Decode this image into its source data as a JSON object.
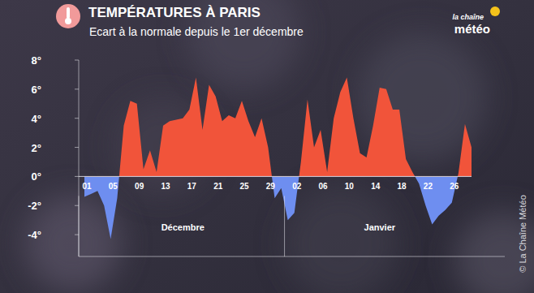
{
  "chart_data": {
    "type": "area",
    "title": "TEMPÉRATURES À PARIS",
    "subtitle": "Ecart à la normale depuis le 1er décembre",
    "categories": [
      "01",
      null,
      null,
      null,
      "05",
      null,
      null,
      null,
      "09",
      null,
      null,
      null,
      "13",
      null,
      null,
      null,
      "17",
      null,
      null,
      null,
      "21",
      null,
      null,
      null,
      "25",
      null,
      null,
      null,
      "29",
      null,
      null,
      null,
      "02",
      null,
      null,
      null,
      "06",
      null,
      null,
      null,
      "10",
      null,
      null,
      null,
      "14",
      null,
      null,
      null,
      "18",
      null,
      null,
      null,
      "22",
      null,
      null,
      null,
      "26",
      null,
      null,
      null
    ],
    "values": [
      -1.4,
      -1.2,
      -1.0,
      -2.0,
      -4.3,
      -1.5,
      3.5,
      5.2,
      5.0,
      0.5,
      1.8,
      0.3,
      3.5,
      3.8,
      3.9,
      4.0,
      4.6,
      6.8,
      3.2,
      6.3,
      5.5,
      3.8,
      4.2,
      4.0,
      5.2,
      3.8,
      2.7,
      4.0,
      2.0,
      -1.5,
      -0.8,
      -3.0,
      -2.5,
      1.0,
      5.3,
      2.0,
      3.2,
      0.3,
      4.0,
      5.8,
      6.8,
      4.0,
      1.6,
      1.3,
      3.5,
      6.1,
      6.0,
      4.6,
      4.6,
      1.2,
      0.3,
      -0.5,
      -2.0,
      -3.3,
      -2.7,
      -2.3,
      -1.8,
      0.2,
      3.6,
      2.0
    ],
    "color": "#f1543a",
    "ylim": [
      -5.5,
      8
    ],
    "yticks": [
      {
        "value": -4,
        "label": "-4°"
      },
      {
        "value": -2,
        "label": "-2°"
      },
      {
        "value": 0,
        "label": "0°"
      },
      {
        "value": 2,
        "label": "2°"
      },
      {
        "value": 4,
        "label": "4°"
      },
      {
        "value": 6,
        "label": "6°"
      },
      {
        "value": 8,
        "label": "8°"
      }
    ],
    "x_groups": [
      {
        "label": "Décembre",
        "first": 0,
        "last": 30
      },
      {
        "label": "Janvier",
        "first": 31,
        "last": 59
      }
    ],
    "grid": false
  },
  "branding": {
    "logo": [
      "la chaîne",
      "météo"
    ],
    "copyright": "© La Chaîne Météo"
  }
}
